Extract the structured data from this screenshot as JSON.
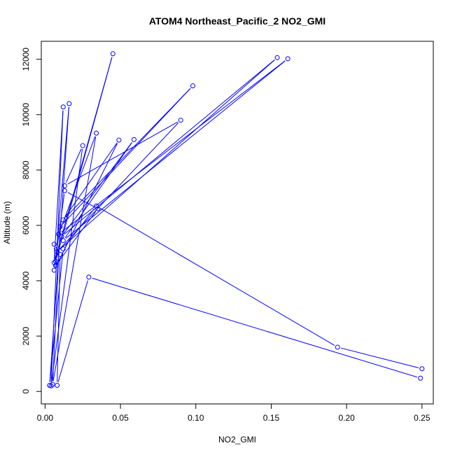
{
  "chart_data": {
    "type": "line",
    "title": "ATOM4 Northeast_Pacific_2 NO2_GMI",
    "xlabel": "NO2_GMI",
    "ylabel": "Altitude (m)",
    "xlim": [
      -0.0025,
      0.2575
    ],
    "ylim": [
      -450,
      12650
    ],
    "x_ticks": [
      0,
      0.05,
      0.1,
      0.15,
      0.2,
      0.25
    ],
    "x_tick_labels": [
      "0.00",
      "0.05",
      "0.10",
      "0.15",
      "0.20",
      "0.25"
    ],
    "y_ticks": [
      0,
      2000,
      4000,
      6000,
      8000,
      10000,
      12000
    ],
    "y_tick_labels": [
      "0",
      "2000",
      "4000",
      "6000",
      "8000",
      "10000",
      "12000"
    ],
    "grid": false,
    "line_color": "#0000ff",
    "marker": "open-circle",
    "series": [
      {
        "points": [
          [
            0.25,
            820
          ],
          [
            0.194,
            1600
          ],
          [
            0.034,
            6700
          ],
          [
            0.012,
            5150
          ],
          [
            0.003,
            220
          ],
          [
            0.016,
            10400
          ],
          [
            0.007,
            4700
          ],
          [
            0.045,
            12200
          ],
          [
            0.006,
            4650
          ],
          [
            0.012,
            10280
          ],
          [
            0.004,
            200
          ],
          [
            0.025,
            8880
          ],
          [
            0.013,
            7430
          ],
          [
            0.09,
            9800
          ],
          [
            0.008,
            5050
          ],
          [
            0.154,
            12060
          ],
          [
            0.011,
            5600
          ],
          [
            0.059,
            9100
          ],
          [
            0.012,
            5450
          ],
          [
            0.161,
            12020
          ],
          [
            0.009,
            5680
          ],
          [
            0.034,
            9330
          ],
          [
            0.005,
            250
          ],
          [
            0.01,
            5950
          ],
          [
            0.098,
            11040
          ],
          [
            0.012,
            6200
          ],
          [
            0.049,
            9080
          ],
          [
            0.006,
            4380
          ],
          [
            0.013,
            7250
          ],
          [
            0.035,
            6600
          ],
          [
            0.007,
            4550
          ],
          [
            0.006,
            5320
          ],
          [
            0.01,
            4950
          ],
          [
            0.008,
            220
          ],
          [
            0.029,
            4130
          ],
          [
            0.249,
            480
          ]
        ]
      }
    ]
  }
}
